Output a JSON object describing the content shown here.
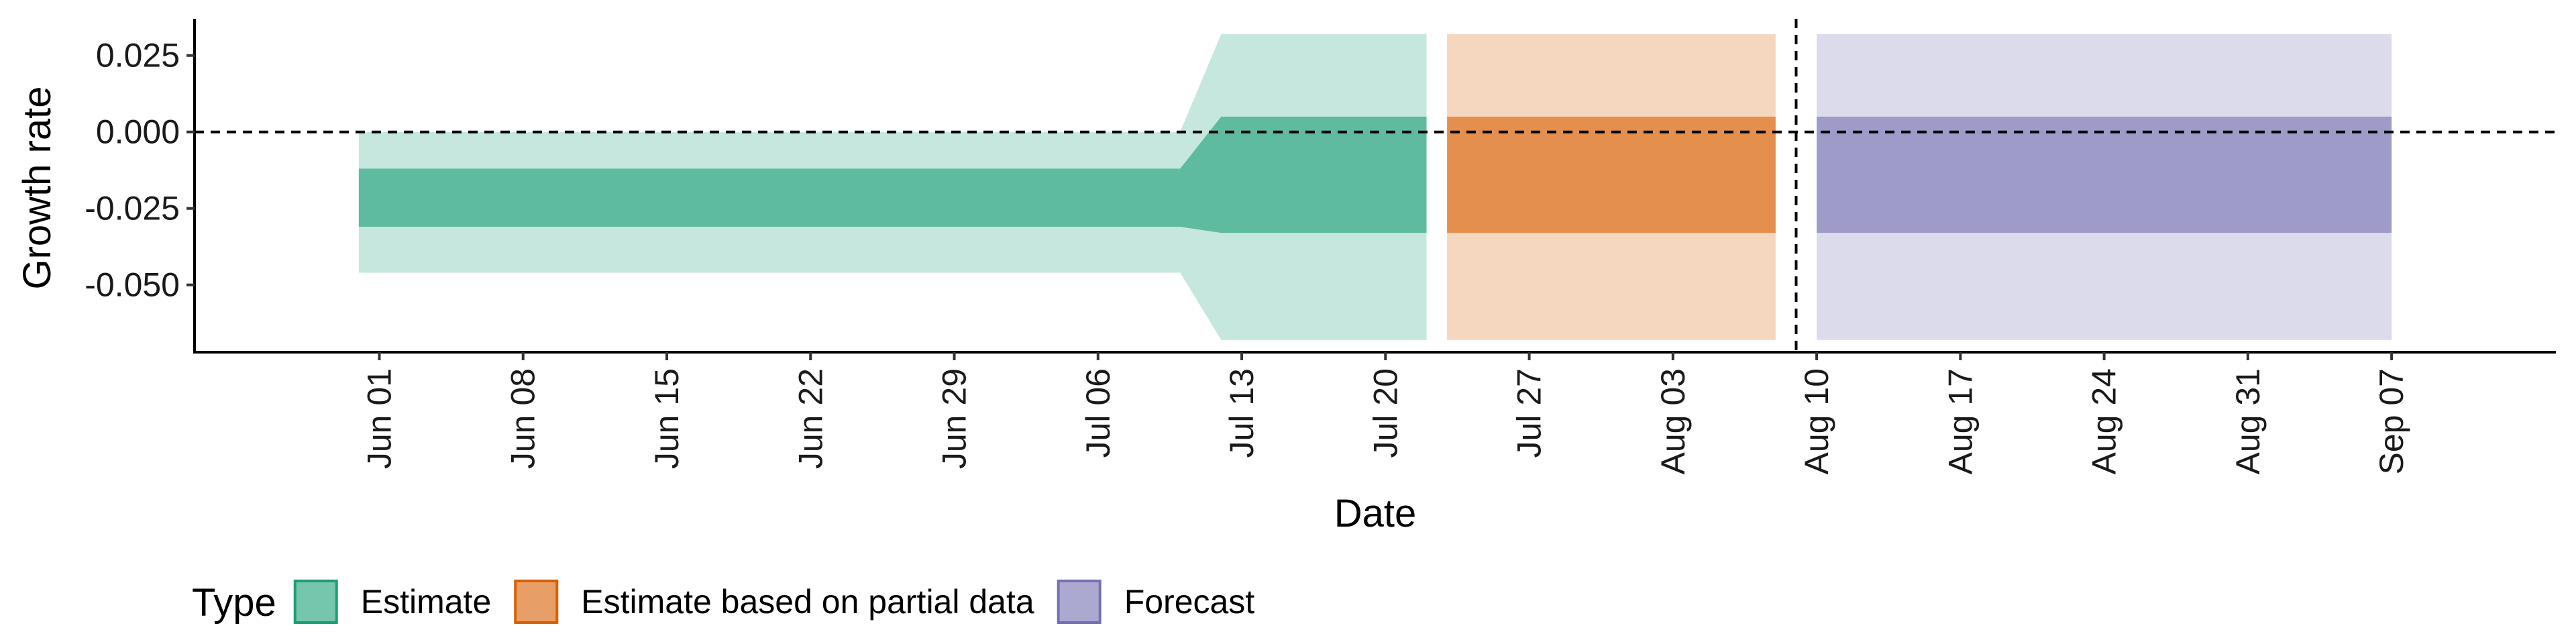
{
  "chart_data": {
    "type": "area",
    "xlabel": "Date",
    "ylabel": "Growth rate",
    "x_type": "date",
    "xlim": [
      "2020-05-23",
      "2020-09-15"
    ],
    "ylim": [
      -0.072,
      0.037
    ],
    "x_ticks": [
      {
        "date": "2020-06-01",
        "label": "Jun 01"
      },
      {
        "date": "2020-06-08",
        "label": "Jun 08"
      },
      {
        "date": "2020-06-15",
        "label": "Jun 15"
      },
      {
        "date": "2020-06-22",
        "label": "Jun 22"
      },
      {
        "date": "2020-06-29",
        "label": "Jun 29"
      },
      {
        "date": "2020-07-06",
        "label": "Jul 06"
      },
      {
        "date": "2020-07-13",
        "label": "Jul 13"
      },
      {
        "date": "2020-07-20",
        "label": "Jul 20"
      },
      {
        "date": "2020-07-27",
        "label": "Jul 27"
      },
      {
        "date": "2020-08-03",
        "label": "Aug 03"
      },
      {
        "date": "2020-08-10",
        "label": "Aug 10"
      },
      {
        "date": "2020-08-17",
        "label": "Aug 17"
      },
      {
        "date": "2020-08-24",
        "label": "Aug 24"
      },
      {
        "date": "2020-08-31",
        "label": "Aug 31"
      },
      {
        "date": "2020-09-07",
        "label": "Sep 07"
      }
    ],
    "y_ticks": [
      {
        "value": 0.025,
        "label": "0.025"
      },
      {
        "value": 0.0,
        "label": "0.000"
      },
      {
        "value": -0.025,
        "label": "-0.025"
      },
      {
        "value": -0.05,
        "label": "-0.050"
      }
    ],
    "hlines": [
      {
        "value": 0.0,
        "style": "dashed"
      }
    ],
    "vlines": [
      {
        "date": "2020-08-09",
        "style": "dashed"
      }
    ],
    "legend": {
      "title": "Type",
      "position": "bottom"
    },
    "series": [
      {
        "name": "Estimate",
        "color": "#1b9e77",
        "points": [
          {
            "x": "2020-05-31",
            "lower90": -0.046,
            "lower50": -0.031,
            "upper50": -0.012,
            "upper90": 0.0
          },
          {
            "x": "2020-07-10",
            "lower90": -0.046,
            "lower50": -0.031,
            "upper50": -0.012,
            "upper90": 0.0
          },
          {
            "x": "2020-07-12",
            "lower90": -0.068,
            "lower50": -0.033,
            "upper50": 0.005,
            "upper90": 0.032
          },
          {
            "x": "2020-07-22",
            "lower90": -0.068,
            "lower50": -0.033,
            "upper50": 0.005,
            "upper90": 0.032
          }
        ]
      },
      {
        "name": "Estimate based on partial data",
        "color": "#d95f02",
        "points": [
          {
            "x": "2020-07-23",
            "lower90": -0.068,
            "lower50": -0.033,
            "upper50": 0.005,
            "upper90": 0.032
          },
          {
            "x": "2020-08-08",
            "lower90": -0.068,
            "lower50": -0.033,
            "upper50": 0.005,
            "upper90": 0.032
          }
        ]
      },
      {
        "name": "Forecast",
        "color": "#7570b3",
        "points": [
          {
            "x": "2020-08-10",
            "lower90": -0.068,
            "lower50": -0.033,
            "upper50": 0.005,
            "upper90": 0.032
          },
          {
            "x": "2020-09-07",
            "lower90": -0.068,
            "lower50": -0.033,
            "upper50": 0.005,
            "upper90": 0.032
          }
        ]
      }
    ]
  }
}
